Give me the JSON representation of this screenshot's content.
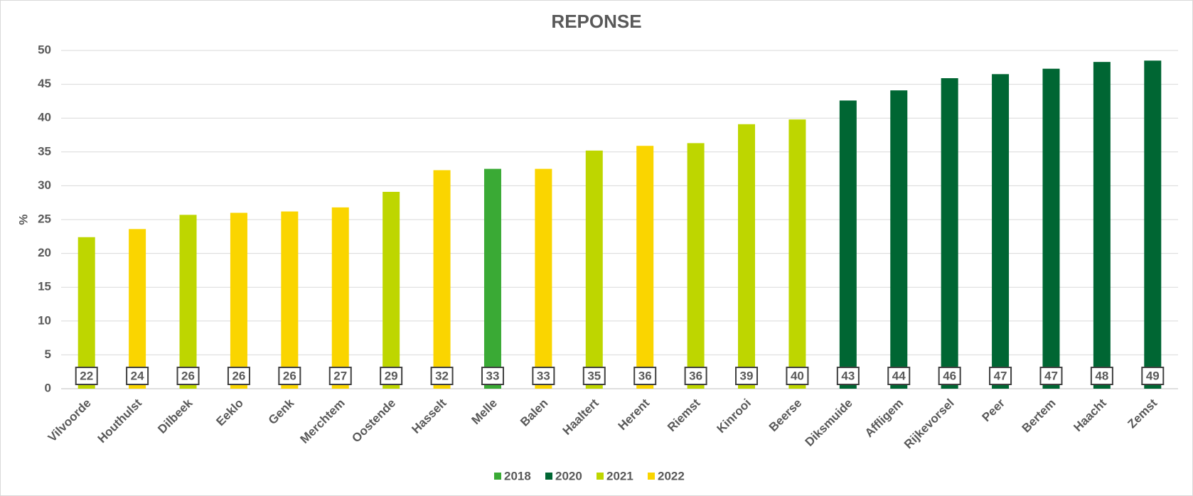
{
  "chart_data": {
    "type": "bar",
    "title": "REPONSE",
    "y_label": "%",
    "categories": [
      "Vilvoorde",
      "Houthulst",
      "Dilbeek",
      "Eeklo",
      "Genk",
      "Merchtem",
      "Oostende",
      "Hasselt",
      "Melle",
      "Balen",
      "Haaltert",
      "Herent",
      "Riemst",
      "Kinrooi",
      "Beerse",
      "Diksmuide",
      "Affligem",
      "Rijkevorsel",
      "Peer",
      "Bertem",
      "Haacht",
      "Zemst"
    ],
    "series": [
      {
        "name": "2018",
        "color": "#3aaa35",
        "values": [
          null,
          null,
          null,
          null,
          null,
          null,
          null,
          null,
          32.5,
          null,
          null,
          null,
          null,
          null,
          null,
          null,
          null,
          null,
          null,
          null,
          null,
          null
        ],
        "value_labels": [
          null,
          null,
          null,
          null,
          null,
          null,
          null,
          null,
          "33",
          null,
          null,
          null,
          null,
          null,
          null,
          null,
          null,
          null,
          null,
          null,
          null,
          null
        ]
      },
      {
        "name": "2020",
        "color": "#006633",
        "values": [
          null,
          null,
          null,
          null,
          null,
          null,
          null,
          null,
          null,
          null,
          null,
          null,
          null,
          null,
          null,
          42.6,
          44.1,
          45.9,
          46.5,
          47.3,
          48.3,
          48.5
        ],
        "value_labels": [
          null,
          null,
          null,
          null,
          null,
          null,
          null,
          null,
          null,
          null,
          null,
          null,
          null,
          null,
          null,
          "43",
          "44",
          "46",
          "47",
          "47",
          "48",
          "49"
        ]
      },
      {
        "name": "2021",
        "color": "#bed600",
        "values": [
          22.4,
          null,
          25.7,
          null,
          null,
          null,
          29.1,
          null,
          null,
          null,
          35.2,
          null,
          36.3,
          39.1,
          39.8,
          null,
          null,
          null,
          null,
          null,
          null,
          null
        ],
        "value_labels": [
          "22",
          null,
          "26",
          null,
          null,
          null,
          "29",
          null,
          null,
          null,
          "35",
          null,
          "36",
          "39",
          "40",
          null,
          null,
          null,
          null,
          null,
          null,
          null
        ]
      },
      {
        "name": "2022",
        "color": "#fad500",
        "values": [
          null,
          23.6,
          null,
          26.0,
          26.2,
          26.8,
          null,
          32.3,
          null,
          32.5,
          null,
          35.9,
          null,
          null,
          null,
          null,
          null,
          null,
          null,
          null,
          null,
          null
        ],
        "value_labels": [
          null,
          "24",
          null,
          "26",
          "26",
          "27",
          null,
          "32",
          null,
          "33",
          null,
          "36",
          null,
          null,
          null,
          null,
          null,
          null,
          null,
          null,
          null,
          null
        ]
      }
    ],
    "ylim": [
      0,
      50
    ],
    "yticks": [
      0,
      5,
      10,
      15,
      20,
      25,
      30,
      35,
      40,
      45,
      50
    ],
    "grid": true,
    "legend": "bottom"
  }
}
